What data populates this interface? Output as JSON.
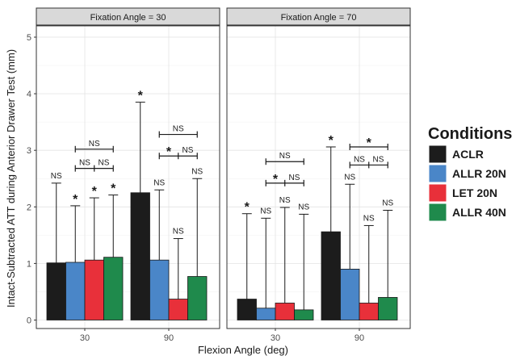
{
  "chart_data": {
    "type": "bar",
    "xlabel": "Flexion Angle (deg)",
    "ylabel": "Intact-Subtracted ATT during Anterior Drawer Test (mm)",
    "ylim": [
      0,
      5.2
    ],
    "yticks": [
      "0",
      "1",
      "2",
      "3",
      "4",
      "5"
    ],
    "categories": [
      "30",
      "90"
    ],
    "legend": {
      "title": "Conditions",
      "position": "right",
      "items": [
        {
          "label": "ACLR",
          "color": "#1c1c1c"
        },
        {
          "label": "ALLR 20N",
          "color": "#4a86c8"
        },
        {
          "label": "LET 20N",
          "color": "#e8303a"
        },
        {
          "label": "ALLR 40N",
          "color": "#1f8a4c"
        }
      ]
    },
    "grid": true,
    "panels": [
      {
        "strip": "Fixation Angle = 30",
        "groups": [
          {
            "category": "30",
            "bars": [
              {
                "series": "ACLR",
                "value": 1.01,
                "upper": 2.42,
                "label": "NS"
              },
              {
                "series": "ALLR 20N",
                "value": 1.02,
                "upper": 2.02,
                "label": "*"
              },
              {
                "series": "LET 20N",
                "value": 1.06,
                "upper": 2.16,
                "label": "*"
              },
              {
                "series": "ALLR 40N",
                "value": 1.11,
                "upper": 2.21,
                "label": "*"
              }
            ],
            "brackets": [
              {
                "from": 1,
                "to": 3,
                "level": 3.02,
                "ticks": [],
                "texts": [
                  {
                    "at": "mid",
                    "text": "NS"
                  }
                ]
              },
              {
                "from": 1,
                "to": 3,
                "level": 2.68,
                "ticks": [
                  "mid"
                ],
                "texts": [
                  {
                    "at": "left",
                    "text": "NS"
                  },
                  {
                    "at": "right",
                    "text": "NS"
                  }
                ]
              }
            ]
          },
          {
            "category": "90",
            "bars": [
              {
                "series": "ACLR",
                "value": 2.25,
                "upper": 3.85,
                "label": "*"
              },
              {
                "series": "ALLR 20N",
                "value": 1.06,
                "upper": 2.3,
                "label": "NS"
              },
              {
                "series": "LET 20N",
                "value": 0.37,
                "upper": 1.44,
                "label": "NS"
              },
              {
                "series": "ALLR 40N",
                "value": 0.77,
                "upper": 2.5,
                "label": "NS"
              }
            ],
            "brackets": [
              {
                "from": 1,
                "to": 3,
                "level": 3.28,
                "ticks": [],
                "texts": [
                  {
                    "at": "mid",
                    "text": "NS"
                  }
                ]
              },
              {
                "from": 1,
                "to": 3,
                "level": 2.9,
                "ticks": [
                  "mid"
                ],
                "texts": [
                  {
                    "at": "left",
                    "text": "*"
                  },
                  {
                    "at": "right",
                    "text": "NS"
                  }
                ]
              }
            ]
          }
        ]
      },
      {
        "strip": "Fixation Angle = 70",
        "groups": [
          {
            "category": "30",
            "bars": [
              {
                "series": "ACLR",
                "value": 0.37,
                "upper": 1.88,
                "label": "*"
              },
              {
                "series": "ALLR 20N",
                "value": 0.21,
                "upper": 1.8,
                "label": "NS"
              },
              {
                "series": "LET 20N",
                "value": 0.3,
                "upper": 1.99,
                "label": "NS"
              },
              {
                "series": "ALLR 40N",
                "value": 0.18,
                "upper": 1.87,
                "label": "NS"
              }
            ],
            "brackets": [
              {
                "from": 1,
                "to": 3,
                "level": 2.8,
                "ticks": [],
                "texts": [
                  {
                    "at": "mid",
                    "text": "NS"
                  }
                ]
              },
              {
                "from": 1,
                "to": 3,
                "level": 2.42,
                "ticks": [
                  "mid"
                ],
                "texts": [
                  {
                    "at": "left",
                    "text": "*"
                  },
                  {
                    "at": "right",
                    "text": "NS"
                  }
                ]
              }
            ]
          },
          {
            "category": "90",
            "bars": [
              {
                "series": "ACLR",
                "value": 1.56,
                "upper": 3.06,
                "label": "*"
              },
              {
                "series": "ALLR 20N",
                "value": 0.9,
                "upper": 2.4,
                "label": "NS"
              },
              {
                "series": "LET 20N",
                "value": 0.3,
                "upper": 1.67,
                "label": "NS"
              },
              {
                "series": "ALLR 40N",
                "value": 0.4,
                "upper": 1.94,
                "label": "NS"
              }
            ],
            "brackets": [
              {
                "from": 1,
                "to": 3,
                "level": 3.06,
                "ticks": [],
                "texts": [
                  {
                    "at": "mid",
                    "text": "*"
                  }
                ]
              },
              {
                "from": 1,
                "to": 3,
                "level": 2.74,
                "ticks": [
                  "mid"
                ],
                "texts": [
                  {
                    "at": "left",
                    "text": "NS"
                  },
                  {
                    "at": "right",
                    "text": "NS"
                  }
                ]
              }
            ]
          }
        ]
      }
    ]
  }
}
